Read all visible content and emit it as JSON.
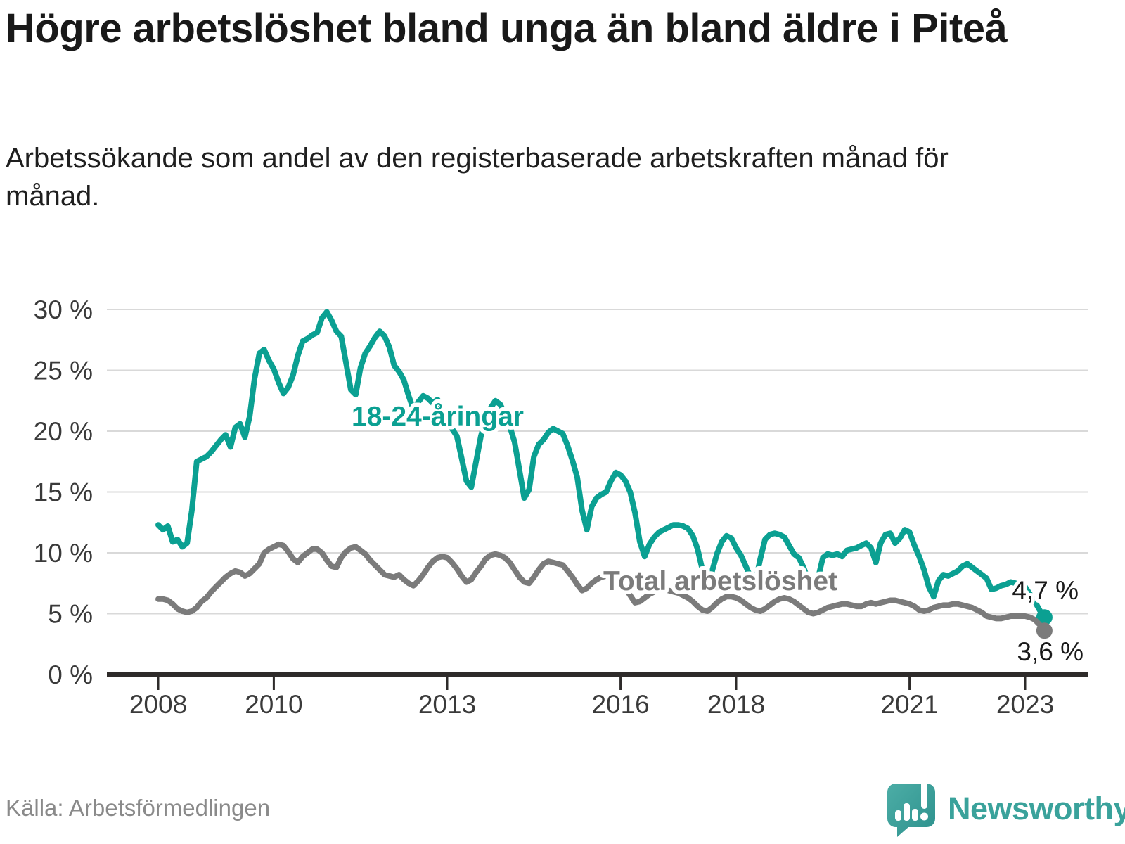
{
  "header": {
    "title": "Högre arbetslöshet bland unga än bland äldre i Piteå",
    "subtitle": "Arbetssökande som andel av den registerbaserade arbetskraften månad för månad."
  },
  "footer": {
    "source": "Källa: Arbetsförmedlingen",
    "brand": "Newsworthy",
    "brand_icon": "bar-chart-exclamation-speech-bubble-icon",
    "brand_color": "#3aa29b"
  },
  "chart_data": {
    "type": "line",
    "title": "",
    "xlabel": "",
    "ylabel": "",
    "unit": "%",
    "ylim": [
      0,
      30
    ],
    "yticks": [
      0,
      5,
      10,
      15,
      20,
      25,
      30
    ],
    "ytick_format": "{v} %",
    "xticks": [
      2008,
      2010,
      2013,
      2016,
      2018,
      2021,
      2023
    ],
    "grid": "horizontal",
    "legend_position": "inline-labels",
    "x_start": {
      "year": 2008,
      "month": 1
    },
    "x_end": {
      "year": 2023,
      "month": 5
    },
    "frequency": "monthly",
    "colors": {
      "gridline": "#d9d9d9",
      "axis": "#2e2b2a",
      "tick_label": "#3a3a3a"
    },
    "series": [
      {
        "name": "18-24-åringar",
        "color": "#0ba092",
        "end_label": "4,7 %",
        "end_value": 4.7,
        "values": [
          12.3,
          11.9,
          12.2,
          10.9,
          11.1,
          10.5,
          10.8,
          13.5,
          17.5,
          17.7,
          17.9,
          18.3,
          18.8,
          19.3,
          19.7,
          18.7,
          20.3,
          20.6,
          19.5,
          21.2,
          24.3,
          26.4,
          26.7,
          25.8,
          25.1,
          24.0,
          23.1,
          23.6,
          24.6,
          26.2,
          27.4,
          27.6,
          27.9,
          28.1,
          29.3,
          29.8,
          29.1,
          28.2,
          27.8,
          25.6,
          23.4,
          23.0,
          25.2,
          26.4,
          27.0,
          27.7,
          28.2,
          27.8,
          26.9,
          25.4,
          24.9,
          24.2,
          22.9,
          21.8,
          22.4,
          22.9,
          22.7,
          22.3,
          22.6,
          21.9,
          21.0,
          20.2,
          19.6,
          17.8,
          15.9,
          15.4,
          17.5,
          19.6,
          21.0,
          21.9,
          22.5,
          22.2,
          21.4,
          20.4,
          19.1,
          16.8,
          14.5,
          15.2,
          17.9,
          18.9,
          19.3,
          19.9,
          20.2,
          20.0,
          19.8,
          18.8,
          17.6,
          16.2,
          13.5,
          11.9,
          13.8,
          14.5,
          14.8,
          15.0,
          15.9,
          16.6,
          16.4,
          15.9,
          15.0,
          13.3,
          10.9,
          9.7,
          10.7,
          11.3,
          11.7,
          11.9,
          12.1,
          12.3,
          12.3,
          12.2,
          12.0,
          11.4,
          10.3,
          8.6,
          7.9,
          8.5,
          9.9,
          10.9,
          11.4,
          11.2,
          10.4,
          9.8,
          8.9,
          8.0,
          7.6,
          9.5,
          11.1,
          11.5,
          11.6,
          11.5,
          11.3,
          10.6,
          9.9,
          9.6,
          8.8,
          7.7,
          7.4,
          7.9,
          9.6,
          9.9,
          9.8,
          9.9,
          9.7,
          10.2,
          10.3,
          10.4,
          10.6,
          10.8,
          10.4,
          9.2,
          10.8,
          11.5,
          11.6,
          10.8,
          11.2,
          11.9,
          11.7,
          10.6,
          9.7,
          8.6,
          7.2,
          6.4,
          7.7,
          8.2,
          8.1,
          8.3,
          8.5,
          8.9,
          9.1,
          8.8,
          8.5,
          8.2,
          7.9,
          7.0,
          7.1,
          7.3,
          7.4,
          7.6,
          7.5,
          7.3,
          7.2,
          6.6,
          6.0,
          5.3,
          4.7
        ]
      },
      {
        "name": "Total arbetslöshet",
        "color": "#7b7b7b",
        "end_label": "3,6 %",
        "end_value": 3.6,
        "values": [
          6.2,
          6.2,
          6.1,
          5.8,
          5.4,
          5.2,
          5.1,
          5.2,
          5.5,
          6.0,
          6.3,
          6.8,
          7.2,
          7.6,
          8.0,
          8.3,
          8.5,
          8.4,
          8.1,
          8.3,
          8.7,
          9.1,
          10.0,
          10.3,
          10.5,
          10.7,
          10.6,
          10.1,
          9.5,
          9.2,
          9.7,
          10.0,
          10.3,
          10.3,
          10.0,
          9.4,
          8.9,
          8.8,
          9.6,
          10.1,
          10.4,
          10.5,
          10.2,
          9.9,
          9.4,
          9.0,
          8.6,
          8.2,
          8.1,
          8.0,
          8.2,
          7.8,
          7.5,
          7.3,
          7.7,
          8.2,
          8.8,
          9.3,
          9.6,
          9.7,
          9.6,
          9.2,
          8.7,
          8.1,
          7.6,
          7.8,
          8.4,
          8.9,
          9.5,
          9.8,
          9.9,
          9.8,
          9.6,
          9.2,
          8.6,
          8.0,
          7.6,
          7.5,
          8.0,
          8.6,
          9.1,
          9.3,
          9.2,
          9.1,
          9.0,
          8.5,
          8.0,
          7.4,
          6.9,
          7.1,
          7.5,
          7.8,
          8.0,
          8.1,
          8.0,
          7.8,
          7.6,
          7.1,
          6.5,
          5.9,
          6.0,
          6.3,
          6.6,
          6.8,
          7.0,
          7.0,
          6.9,
          6.8,
          6.7,
          6.5,
          6.3,
          6.0,
          5.6,
          5.3,
          5.2,
          5.5,
          5.9,
          6.2,
          6.4,
          6.4,
          6.3,
          6.1,
          5.8,
          5.5,
          5.3,
          5.2,
          5.4,
          5.7,
          6.0,
          6.2,
          6.3,
          6.2,
          6.0,
          5.7,
          5.4,
          5.1,
          5.0,
          5.1,
          5.3,
          5.5,
          5.6,
          5.7,
          5.8,
          5.8,
          5.7,
          5.6,
          5.6,
          5.8,
          5.9,
          5.8,
          5.9,
          6.0,
          6.1,
          6.1,
          6.0,
          5.9,
          5.8,
          5.6,
          5.3,
          5.2,
          5.3,
          5.5,
          5.6,
          5.7,
          5.7,
          5.8,
          5.8,
          5.7,
          5.6,
          5.5,
          5.3,
          5.1,
          4.8,
          4.7,
          4.6,
          4.6,
          4.7,
          4.8,
          4.8,
          4.8,
          4.8,
          4.7,
          4.5,
          4.1,
          3.6
        ]
      }
    ]
  }
}
